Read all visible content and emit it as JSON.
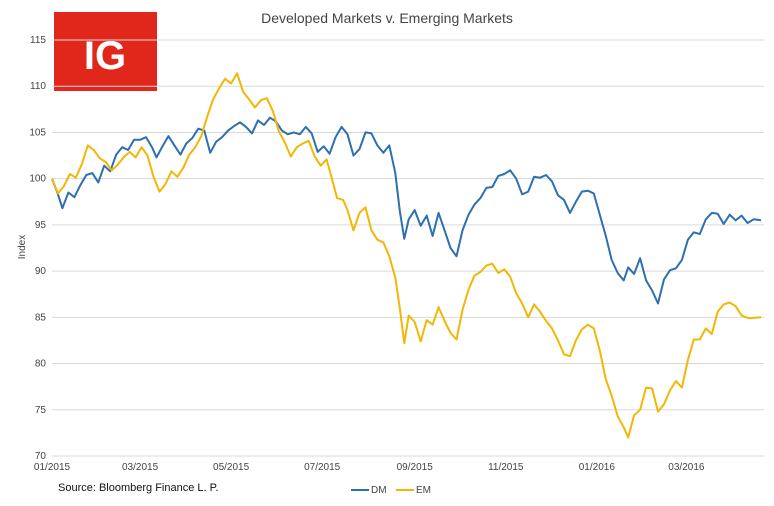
{
  "logo": {
    "text": "IG",
    "bg_color": "#e1261c",
    "text_color": "#ffffff"
  },
  "source": "Source: Bloomberg Finance L. P.",
  "chart_data": {
    "type": "line",
    "title": "Developed Markets v. Emerging Markets",
    "xlabel": "",
    "ylabel": "Index",
    "ylim": [
      70,
      115
    ],
    "yticks": [
      70,
      75,
      80,
      85,
      90,
      95,
      100,
      105,
      110,
      115
    ],
    "xlim": [
      "2015-01-01",
      "2016-04-22"
    ],
    "xticks": [
      {
        "date": "2015-01-01",
        "label": "01/2015"
      },
      {
        "date": "2015-03-01",
        "label": "03/2015"
      },
      {
        "date": "2015-05-01",
        "label": "05/2015"
      },
      {
        "date": "2015-07-01",
        "label": "07/2015"
      },
      {
        "date": "2015-09-01",
        "label": "09/2015"
      },
      {
        "date": "2015-11-01",
        "label": "11/2015"
      },
      {
        "date": "2016-01-01",
        "label": "01/2016"
      },
      {
        "date": "2016-03-01",
        "label": "03/2016"
      }
    ],
    "grid": true,
    "legend_position": "bottom-center",
    "series": [
      {
        "name": "DM",
        "color": "#2e6fb0",
        "points": [
          [
            "2015-01-01",
            100.0
          ],
          [
            "2015-01-05",
            98.3
          ],
          [
            "2015-01-08",
            96.8
          ],
          [
            "2015-01-12",
            98.5
          ],
          [
            "2015-01-16",
            98.0
          ],
          [
            "2015-01-20",
            99.3
          ],
          [
            "2015-01-24",
            100.4
          ],
          [
            "2015-01-28",
            100.6
          ],
          [
            "2015-02-01",
            99.6
          ],
          [
            "2015-02-05",
            101.4
          ],
          [
            "2015-02-09",
            100.8
          ],
          [
            "2015-02-13",
            102.6
          ],
          [
            "2015-02-17",
            103.4
          ],
          [
            "2015-02-21",
            103.1
          ],
          [
            "2015-02-25",
            104.2
          ],
          [
            "2015-03-01",
            104.2
          ],
          [
            "2015-03-05",
            104.5
          ],
          [
            "2015-03-09",
            103.4
          ],
          [
            "2015-03-12",
            102.3
          ],
          [
            "2015-03-16",
            103.5
          ],
          [
            "2015-03-20",
            104.6
          ],
          [
            "2015-03-24",
            103.6
          ],
          [
            "2015-03-28",
            102.6
          ],
          [
            "2015-04-01",
            103.8
          ],
          [
            "2015-04-05",
            104.4
          ],
          [
            "2015-04-09",
            105.4
          ],
          [
            "2015-04-13",
            105.2
          ],
          [
            "2015-04-17",
            102.8
          ],
          [
            "2015-04-21",
            104.0
          ],
          [
            "2015-04-25",
            104.5
          ],
          [
            "2015-04-29",
            105.2
          ],
          [
            "2015-05-03",
            105.7
          ],
          [
            "2015-05-07",
            106.1
          ],
          [
            "2015-05-11",
            105.6
          ],
          [
            "2015-05-15",
            104.9
          ],
          [
            "2015-05-19",
            106.3
          ],
          [
            "2015-05-23",
            105.8
          ],
          [
            "2015-05-27",
            106.6
          ],
          [
            "2015-05-31",
            106.2
          ],
          [
            "2015-06-04",
            105.2
          ],
          [
            "2015-06-08",
            104.8
          ],
          [
            "2015-06-12",
            105.0
          ],
          [
            "2015-06-16",
            104.8
          ],
          [
            "2015-06-20",
            105.6
          ],
          [
            "2015-06-24",
            104.9
          ],
          [
            "2015-06-28",
            102.9
          ],
          [
            "2015-07-02",
            103.5
          ],
          [
            "2015-07-06",
            102.7
          ],
          [
            "2015-07-10",
            104.5
          ],
          [
            "2015-07-14",
            105.6
          ],
          [
            "2015-07-18",
            104.8
          ],
          [
            "2015-07-22",
            102.5
          ],
          [
            "2015-07-26",
            103.2
          ],
          [
            "2015-07-30",
            105.0
          ],
          [
            "2015-08-03",
            104.9
          ],
          [
            "2015-08-07",
            103.6
          ],
          [
            "2015-08-11",
            102.8
          ],
          [
            "2015-08-15",
            103.6
          ],
          [
            "2015-08-19",
            100.6
          ],
          [
            "2015-08-22",
            96.5
          ],
          [
            "2015-08-25",
            93.5
          ],
          [
            "2015-08-28",
            95.6
          ],
          [
            "2015-09-01",
            96.6
          ],
          [
            "2015-09-05",
            94.9
          ],
          [
            "2015-09-09",
            96.0
          ],
          [
            "2015-09-13",
            93.8
          ],
          [
            "2015-09-17",
            96.3
          ],
          [
            "2015-09-21",
            94.4
          ],
          [
            "2015-09-25",
            92.5
          ],
          [
            "2015-09-29",
            91.6
          ],
          [
            "2015-10-03",
            94.4
          ],
          [
            "2015-10-07",
            96.1
          ],
          [
            "2015-10-11",
            97.2
          ],
          [
            "2015-10-15",
            97.9
          ],
          [
            "2015-10-19",
            99.0
          ],
          [
            "2015-10-23",
            99.1
          ],
          [
            "2015-10-27",
            100.3
          ],
          [
            "2015-10-31",
            100.5
          ],
          [
            "2015-11-04",
            100.9
          ],
          [
            "2015-11-08",
            100.0
          ],
          [
            "2015-11-12",
            98.3
          ],
          [
            "2015-11-16",
            98.6
          ],
          [
            "2015-11-20",
            100.2
          ],
          [
            "2015-11-24",
            100.1
          ],
          [
            "2015-11-28",
            100.4
          ],
          [
            "2015-12-02",
            99.7
          ],
          [
            "2015-12-06",
            98.2
          ],
          [
            "2015-12-10",
            97.7
          ],
          [
            "2015-12-14",
            96.3
          ],
          [
            "2015-12-18",
            97.5
          ],
          [
            "2015-12-22",
            98.6
          ],
          [
            "2015-12-26",
            98.7
          ],
          [
            "2015-12-30",
            98.4
          ],
          [
            "2016-01-03",
            96.1
          ],
          [
            "2016-01-07",
            93.8
          ],
          [
            "2016-01-11",
            91.2
          ],
          [
            "2016-01-15",
            89.8
          ],
          [
            "2016-01-19",
            89.0
          ],
          [
            "2016-01-22",
            90.4
          ],
          [
            "2016-01-26",
            89.7
          ],
          [
            "2016-01-30",
            91.4
          ],
          [
            "2016-02-03",
            89.0
          ],
          [
            "2016-02-07",
            87.9
          ],
          [
            "2016-02-11",
            86.5
          ],
          [
            "2016-02-15",
            89.1
          ],
          [
            "2016-02-19",
            90.1
          ],
          [
            "2016-02-23",
            90.3
          ],
          [
            "2016-02-27",
            91.2
          ],
          [
            "2016-03-02",
            93.4
          ],
          [
            "2016-03-06",
            94.2
          ],
          [
            "2016-03-10",
            94.0
          ],
          [
            "2016-03-14",
            95.6
          ],
          [
            "2016-03-18",
            96.3
          ],
          [
            "2016-03-22",
            96.2
          ],
          [
            "2016-03-26",
            95.1
          ],
          [
            "2016-03-30",
            96.1
          ],
          [
            "2016-04-03",
            95.5
          ],
          [
            "2016-04-07",
            96.0
          ],
          [
            "2016-04-11",
            95.2
          ],
          [
            "2016-04-15",
            95.6
          ],
          [
            "2016-04-20",
            95.5
          ]
        ]
      },
      {
        "name": "EM",
        "color": "#f2b705",
        "points": [
          [
            "2015-01-01",
            100.0
          ],
          [
            "2015-01-05",
            98.4
          ],
          [
            "2015-01-09",
            99.2
          ],
          [
            "2015-01-13",
            100.5
          ],
          [
            "2015-01-17",
            100.1
          ],
          [
            "2015-01-21",
            101.6
          ],
          [
            "2015-01-25",
            103.6
          ],
          [
            "2015-01-29",
            103.1
          ],
          [
            "2015-02-02",
            102.2
          ],
          [
            "2015-02-06",
            101.8
          ],
          [
            "2015-02-10",
            100.9
          ],
          [
            "2015-02-14",
            101.5
          ],
          [
            "2015-02-18",
            102.3
          ],
          [
            "2015-02-22",
            102.9
          ],
          [
            "2015-02-26",
            102.3
          ],
          [
            "2015-03-02",
            103.4
          ],
          [
            "2015-03-06",
            102.5
          ],
          [
            "2015-03-10",
            100.2
          ],
          [
            "2015-03-14",
            98.6
          ],
          [
            "2015-03-18",
            99.4
          ],
          [
            "2015-03-22",
            100.8
          ],
          [
            "2015-03-26",
            100.2
          ],
          [
            "2015-03-30",
            101.2
          ],
          [
            "2015-04-03",
            102.6
          ],
          [
            "2015-04-07",
            103.4
          ],
          [
            "2015-04-11",
            104.6
          ],
          [
            "2015-04-15",
            106.7
          ],
          [
            "2015-04-19",
            108.6
          ],
          [
            "2015-04-23",
            109.8
          ],
          [
            "2015-04-27",
            110.8
          ],
          [
            "2015-05-01",
            110.3
          ],
          [
            "2015-05-05",
            111.4
          ],
          [
            "2015-05-09",
            109.4
          ],
          [
            "2015-05-13",
            108.6
          ],
          [
            "2015-05-17",
            107.7
          ],
          [
            "2015-05-21",
            108.5
          ],
          [
            "2015-05-25",
            108.7
          ],
          [
            "2015-05-29",
            107.3
          ],
          [
            "2015-06-02",
            105.1
          ],
          [
            "2015-06-06",
            103.9
          ],
          [
            "2015-06-10",
            102.4
          ],
          [
            "2015-06-14",
            103.4
          ],
          [
            "2015-06-18",
            103.8
          ],
          [
            "2015-06-22",
            104.1
          ],
          [
            "2015-06-26",
            102.4
          ],
          [
            "2015-06-30",
            101.4
          ],
          [
            "2015-07-04",
            102.1
          ],
          [
            "2015-07-08",
            99.7
          ],
          [
            "2015-07-11",
            97.9
          ],
          [
            "2015-07-15",
            97.7
          ],
          [
            "2015-07-18",
            96.6
          ],
          [
            "2015-07-22",
            94.4
          ],
          [
            "2015-07-26",
            96.3
          ],
          [
            "2015-07-30",
            96.9
          ],
          [
            "2015-08-03",
            94.4
          ],
          [
            "2015-08-07",
            93.4
          ],
          [
            "2015-08-11",
            93.1
          ],
          [
            "2015-08-15",
            91.6
          ],
          [
            "2015-08-19",
            89.3
          ],
          [
            "2015-08-22",
            86.0
          ],
          [
            "2015-08-25",
            82.2
          ],
          [
            "2015-08-28",
            85.2
          ],
          [
            "2015-09-01",
            84.5
          ],
          [
            "2015-09-05",
            82.4
          ],
          [
            "2015-09-09",
            84.7
          ],
          [
            "2015-09-13",
            84.2
          ],
          [
            "2015-09-17",
            86.1
          ],
          [
            "2015-09-21",
            84.6
          ],
          [
            "2015-09-25",
            83.3
          ],
          [
            "2015-09-29",
            82.6
          ],
          [
            "2015-10-03",
            85.8
          ],
          [
            "2015-10-07",
            88.0
          ],
          [
            "2015-10-11",
            89.5
          ],
          [
            "2015-10-15",
            89.9
          ],
          [
            "2015-10-19",
            90.6
          ],
          [
            "2015-10-23",
            90.8
          ],
          [
            "2015-10-27",
            89.8
          ],
          [
            "2015-10-31",
            90.2
          ],
          [
            "2015-11-04",
            89.4
          ],
          [
            "2015-11-08",
            87.6
          ],
          [
            "2015-11-12",
            86.5
          ],
          [
            "2015-11-16",
            85.0
          ],
          [
            "2015-11-20",
            86.4
          ],
          [
            "2015-11-24",
            85.6
          ],
          [
            "2015-11-28",
            84.6
          ],
          [
            "2015-12-02",
            83.8
          ],
          [
            "2015-12-06",
            82.5
          ],
          [
            "2015-12-10",
            81.0
          ],
          [
            "2015-12-14",
            80.8
          ],
          [
            "2015-12-18",
            82.5
          ],
          [
            "2015-12-22",
            83.7
          ],
          [
            "2015-12-26",
            84.2
          ],
          [
            "2015-12-30",
            83.8
          ],
          [
            "2016-01-03",
            81.4
          ],
          [
            "2016-01-07",
            78.3
          ],
          [
            "2016-01-11",
            76.5
          ],
          [
            "2016-01-15",
            74.3
          ],
          [
            "2016-01-19",
            73.1
          ],
          [
            "2016-01-22",
            72.0
          ],
          [
            "2016-01-26",
            74.4
          ],
          [
            "2016-01-30",
            75.0
          ],
          [
            "2016-02-03",
            77.4
          ],
          [
            "2016-02-07",
            77.3
          ],
          [
            "2016-02-11",
            74.8
          ],
          [
            "2016-02-15",
            75.6
          ],
          [
            "2016-02-19",
            77.1
          ],
          [
            "2016-02-23",
            78.1
          ],
          [
            "2016-02-27",
            77.4
          ],
          [
            "2016-03-02",
            80.4
          ],
          [
            "2016-03-06",
            82.6
          ],
          [
            "2016-03-10",
            82.6
          ],
          [
            "2016-03-14",
            83.8
          ],
          [
            "2016-03-18",
            83.2
          ],
          [
            "2016-03-22",
            85.6
          ],
          [
            "2016-03-26",
            86.4
          ],
          [
            "2016-03-30",
            86.6
          ],
          [
            "2016-04-03",
            86.2
          ],
          [
            "2016-04-07",
            85.2
          ],
          [
            "2016-04-12",
            84.9
          ],
          [
            "2016-04-20",
            85.0
          ]
        ]
      }
    ]
  }
}
